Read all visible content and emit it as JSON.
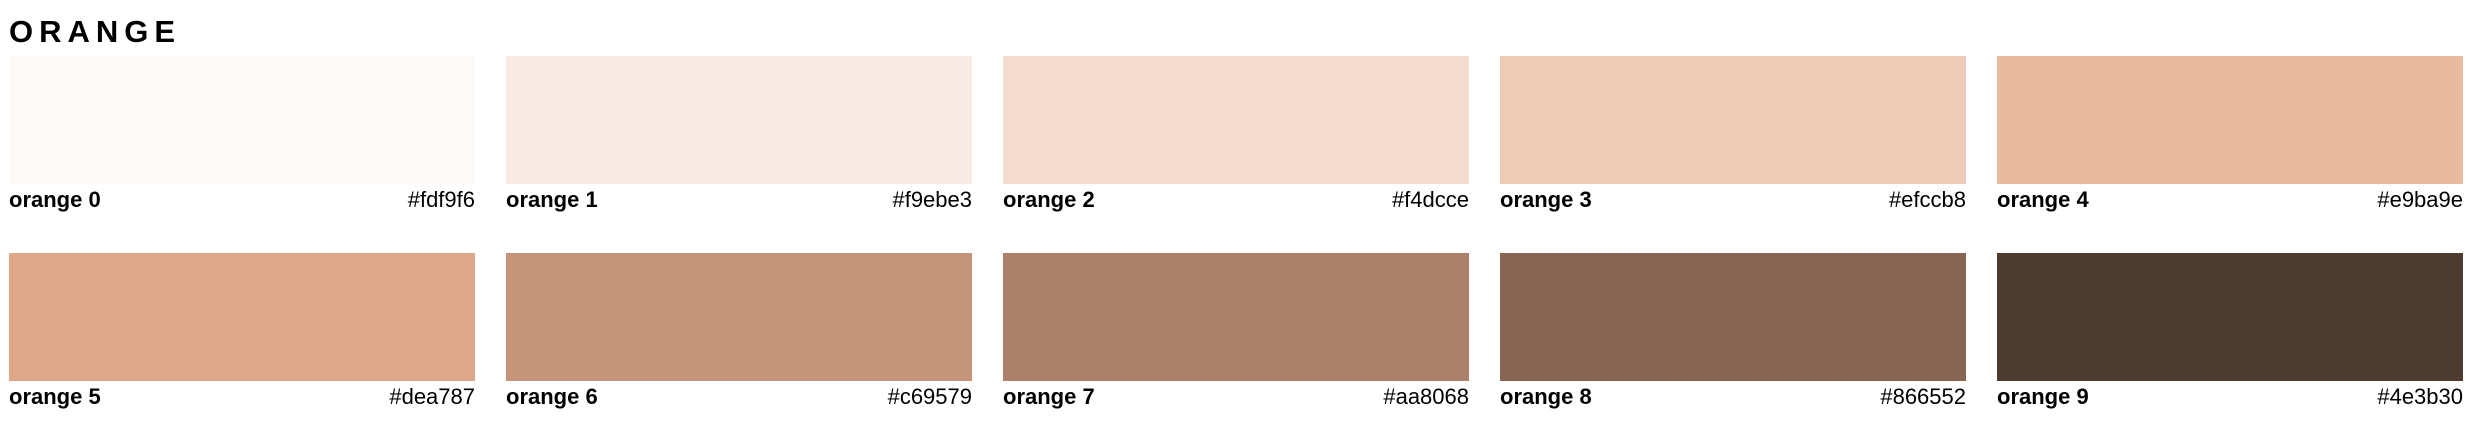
{
  "palette": {
    "title": "ORANGE",
    "swatches": [
      {
        "name": "orange 0",
        "hex": "#fdf9f6"
      },
      {
        "name": "orange 1",
        "hex": "#f9ebe3"
      },
      {
        "name": "orange 2",
        "hex": "#f4dcce"
      },
      {
        "name": "orange 3",
        "hex": "#efccb8"
      },
      {
        "name": "orange 4",
        "hex": "#e9ba9e"
      },
      {
        "name": "orange 5",
        "hex": "#dea787"
      },
      {
        "name": "orange 6",
        "hex": "#c69579"
      },
      {
        "name": "orange 7",
        "hex": "#aa8068"
      },
      {
        "name": "orange 8",
        "hex": "#866552"
      },
      {
        "name": "orange 9",
        "hex": "#4e3b30"
      }
    ]
  }
}
